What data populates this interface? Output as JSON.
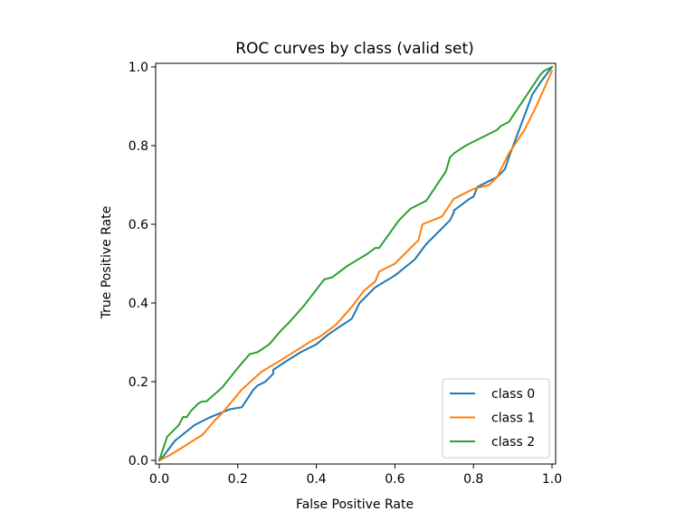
{
  "chart_data": {
    "type": "line",
    "title": "ROC curves by class (valid set)",
    "xlabel": "False Positive Rate",
    "ylabel": "True Positive Rate",
    "xlim": [
      0,
      1
    ],
    "ylim": [
      0,
      1
    ],
    "xticks": [
      "0.0",
      "0.2",
      "0.4",
      "0.6",
      "0.8",
      "1.0"
    ],
    "yticks": [
      "0.0",
      "0.2",
      "0.4",
      "0.6",
      "0.8",
      "1.0"
    ],
    "grid": false,
    "legend_position": "lower right",
    "series": [
      {
        "name": "class 0",
        "color": "#1f77b4",
        "x": [
          0.0,
          0.01,
          0.04,
          0.09,
          0.13,
          0.18,
          0.21,
          0.24,
          0.25,
          0.26,
          0.27,
          0.28,
          0.29,
          0.29,
          0.32,
          0.36,
          0.4,
          0.43,
          0.49,
          0.51,
          0.55,
          0.6,
          0.65,
          0.68,
          0.72,
          0.74,
          0.75,
          0.75,
          0.79,
          0.8,
          0.81,
          0.86,
          0.88,
          0.89,
          0.92,
          0.95,
          0.97,
          1.0
        ],
        "y": [
          0.0,
          0.01,
          0.05,
          0.09,
          0.11,
          0.13,
          0.135,
          0.18,
          0.19,
          0.195,
          0.2,
          0.21,
          0.22,
          0.23,
          0.25,
          0.275,
          0.295,
          0.32,
          0.36,
          0.4,
          0.44,
          0.47,
          0.51,
          0.55,
          0.59,
          0.61,
          0.63,
          0.635,
          0.665,
          0.67,
          0.695,
          0.72,
          0.74,
          0.77,
          0.85,
          0.93,
          0.96,
          1.0
        ]
      },
      {
        "name": "class 1",
        "color": "#ff7f0e",
        "x": [
          0.0,
          0.03,
          0.07,
          0.11,
          0.14,
          0.16,
          0.21,
          0.26,
          0.31,
          0.35,
          0.39,
          0.41,
          0.45,
          0.49,
          0.52,
          0.55,
          0.56,
          0.6,
          0.66,
          0.67,
          0.72,
          0.74,
          0.75,
          0.78,
          0.8,
          0.84,
          0.86,
          0.89,
          0.93,
          0.96,
          1.0
        ],
        "y": [
          0.0,
          0.015,
          0.04,
          0.065,
          0.1,
          0.12,
          0.18,
          0.225,
          0.255,
          0.28,
          0.305,
          0.315,
          0.345,
          0.39,
          0.43,
          0.455,
          0.48,
          0.5,
          0.56,
          0.6,
          0.62,
          0.65,
          0.665,
          0.68,
          0.69,
          0.7,
          0.72,
          0.78,
          0.84,
          0.9,
          0.99
        ]
      },
      {
        "name": "class 2",
        "color": "#2ca02c",
        "x": [
          0.0,
          0.02,
          0.05,
          0.06,
          0.07,
          0.08,
          0.1,
          0.11,
          0.12,
          0.16,
          0.2,
          0.23,
          0.25,
          0.28,
          0.31,
          0.33,
          0.37,
          0.42,
          0.44,
          0.48,
          0.53,
          0.55,
          0.56,
          0.61,
          0.64,
          0.68,
          0.73,
          0.74,
          0.75,
          0.78,
          0.86,
          0.87,
          0.89,
          0.93,
          0.97,
          0.98,
          0.99,
          1.0
        ],
        "y": [
          0.0,
          0.06,
          0.09,
          0.11,
          0.11,
          0.125,
          0.145,
          0.15,
          0.15,
          0.185,
          0.235,
          0.27,
          0.275,
          0.295,
          0.33,
          0.35,
          0.395,
          0.46,
          0.465,
          0.495,
          0.525,
          0.54,
          0.54,
          0.61,
          0.64,
          0.66,
          0.735,
          0.77,
          0.78,
          0.8,
          0.84,
          0.85,
          0.86,
          0.92,
          0.98,
          0.99,
          0.995,
          1.0
        ]
      }
    ]
  }
}
